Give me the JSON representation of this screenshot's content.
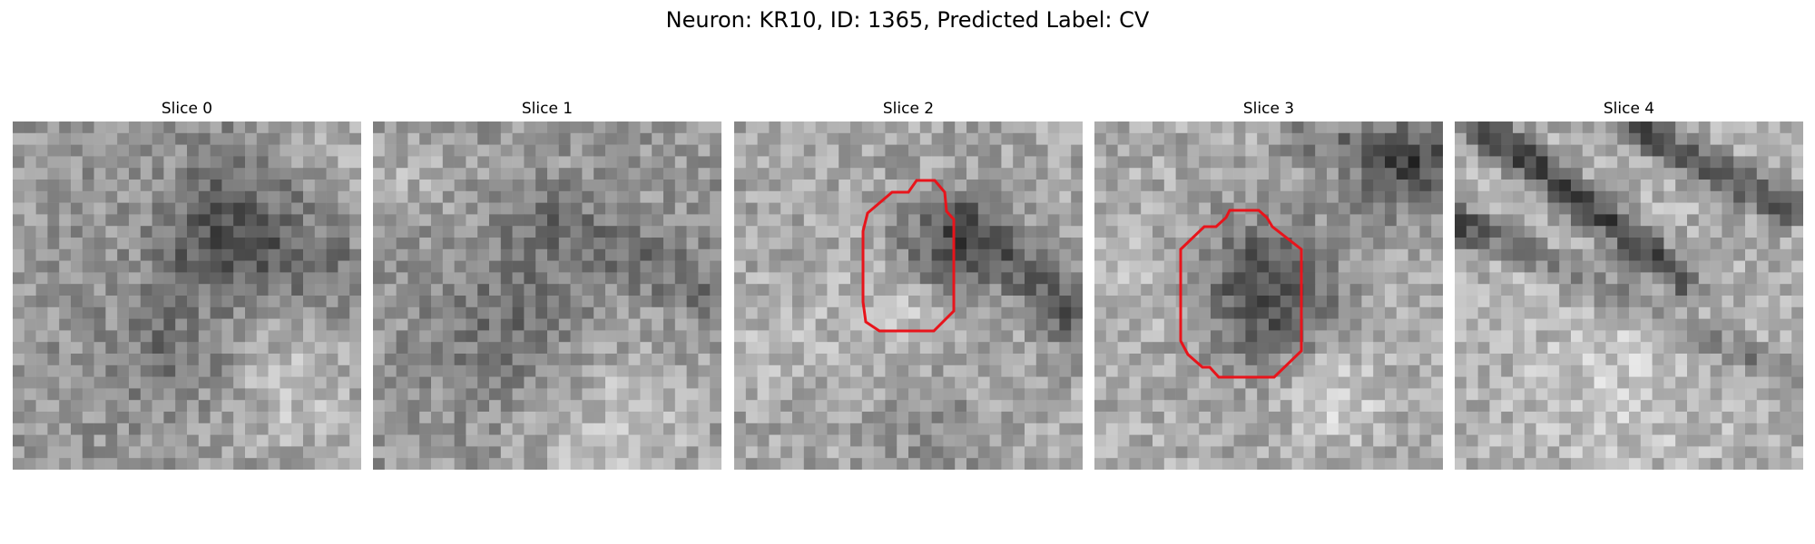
{
  "figure": {
    "title": "Neuron: KR10, ID: 1365, Predicted Label: CV",
    "contour_color": "#e8141b",
    "grid_size": 30,
    "colormap": "gray"
  },
  "panels": [
    {
      "title": "Slice 0",
      "has_contour": false
    },
    {
      "title": "Slice 1",
      "has_contour": false
    },
    {
      "title": "Slice 2",
      "has_contour": true
    },
    {
      "title": "Slice 3",
      "has_contour": true
    },
    {
      "title": "Slice 4",
      "has_contour": false
    }
  ]
}
